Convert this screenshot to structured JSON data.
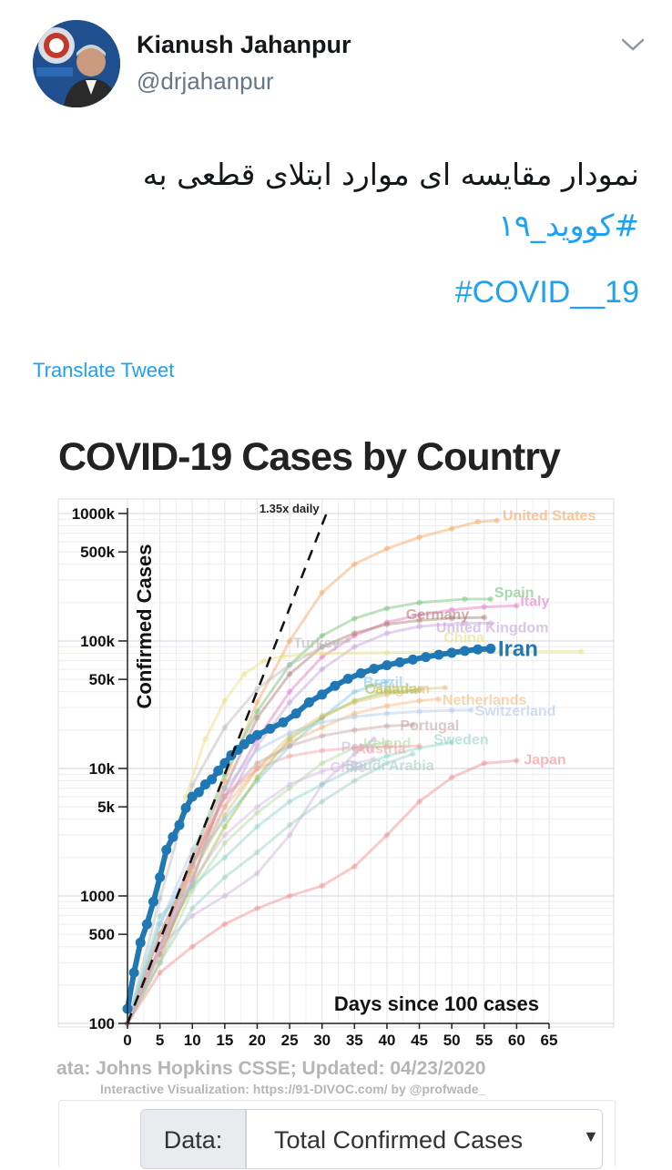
{
  "tweet": {
    "display_name": "Kianush Jahanpur",
    "handle": "@drjahanpur",
    "text_line1": "نمودار مقایسه ای موارد ابتلای قطعی به",
    "hashtag_fa": "#کووید_۱۹",
    "hashtag_en": "#COVID__19",
    "translate_label": "Translate Tweet",
    "menu_icon": "chevron-down-icon",
    "colors": {
      "link": "#1da1f2",
      "text": "#14171a",
      "secondary": "#657786"
    }
  },
  "chart_title": "COVID-19 Cases by Country",
  "chart_data": {
    "type": "line",
    "title": "COVID-19 Cases by Country",
    "xlabel": "Days since 100 cases",
    "ylabel": "Confirmed Cases",
    "xlim": [
      0,
      65
    ],
    "ylim": [
      100,
      1300000
    ],
    "yscale": "log",
    "x_ticks": [
      "0",
      "5",
      "10",
      "15",
      "20",
      "25",
      "30",
      "35",
      "40",
      "45",
      "50",
      "55",
      "60",
      "65"
    ],
    "y_ticks": [
      {
        "label": "100",
        "value": 100
      },
      {
        "label": "500",
        "value": 500
      },
      {
        "label": "1000",
        "value": 1000
      },
      {
        "label": "5k",
        "value": 5000
      },
      {
        "label": "10k",
        "value": 10000
      },
      {
        "label": "50k",
        "value": 50000
      },
      {
        "label": "100k",
        "value": 100000
      },
      {
        "label": "500k",
        "value": 500000
      },
      {
        "label": "1000k",
        "value": 1000000
      }
    ],
    "grid": true,
    "reference_line": {
      "label": "1.35x daily",
      "growth": 1.35,
      "points": [
        [
          0,
          100
        ],
        [
          31,
          1100000
        ]
      ]
    },
    "highlight": "Iran",
    "series": [
      {
        "name": "Iran",
        "color": "#1f77b4",
        "highlight": true,
        "points": [
          [
            0,
            130
          ],
          [
            1,
            250
          ],
          [
            2,
            430
          ],
          [
            3,
            600
          ],
          [
            4,
            900
          ],
          [
            5,
            1400
          ],
          [
            6,
            2300
          ],
          [
            7,
            2900
          ],
          [
            8,
            3600
          ],
          [
            9,
            4900
          ],
          [
            10,
            6000
          ],
          [
            11,
            6500
          ],
          [
            12,
            7500
          ],
          [
            13,
            8200
          ],
          [
            14,
            9600
          ],
          [
            15,
            11000
          ],
          [
            16,
            12700
          ],
          [
            17,
            14000
          ],
          [
            18,
            15500
          ],
          [
            19,
            17000
          ],
          [
            20,
            18300
          ],
          [
            22,
            20500
          ],
          [
            24,
            23000
          ],
          [
            26,
            27000
          ],
          [
            28,
            33000
          ],
          [
            30,
            38000
          ],
          [
            32,
            44500
          ],
          [
            34,
            50500
          ],
          [
            36,
            55700
          ],
          [
            38,
            60500
          ],
          [
            40,
            64500
          ],
          [
            42,
            68000
          ],
          [
            44,
            71500
          ],
          [
            46,
            74800
          ],
          [
            48,
            78000
          ],
          [
            50,
            80800
          ],
          [
            52,
            83500
          ],
          [
            54,
            85900
          ],
          [
            56,
            87000
          ]
        ]
      },
      {
        "name": "United States",
        "color": "#f5a35a",
        "points": [
          [
            0,
            100
          ],
          [
            5,
            300
          ],
          [
            10,
            1700
          ],
          [
            15,
            8000
          ],
          [
            20,
            33000
          ],
          [
            25,
            100000
          ],
          [
            30,
            240000
          ],
          [
            35,
            400000
          ],
          [
            40,
            530000
          ],
          [
            45,
            650000
          ],
          [
            50,
            760000
          ],
          [
            54,
            860000
          ],
          [
            57,
            880000
          ]
        ]
      },
      {
        "name": "Spain",
        "color": "#6fbf73",
        "points": [
          [
            0,
            100
          ],
          [
            5,
            400
          ],
          [
            10,
            2000
          ],
          [
            15,
            9000
          ],
          [
            20,
            28000
          ],
          [
            25,
            65000
          ],
          [
            30,
            110000
          ],
          [
            35,
            150000
          ],
          [
            40,
            180000
          ],
          [
            45,
            200000
          ],
          [
            52,
            213000
          ],
          [
            56,
            213000
          ]
        ]
      },
      {
        "name": "Italy",
        "color": "#e377c2",
        "points": [
          [
            0,
            100
          ],
          [
            5,
            400
          ],
          [
            10,
            1700
          ],
          [
            15,
            6000
          ],
          [
            20,
            17000
          ],
          [
            25,
            40000
          ],
          [
            30,
            75000
          ],
          [
            35,
            110000
          ],
          [
            40,
            140000
          ],
          [
            45,
            160000
          ],
          [
            50,
            175000
          ],
          [
            55,
            185000
          ],
          [
            60,
            189000
          ]
        ]
      },
      {
        "name": "Germany",
        "color": "#ad7a6e",
        "points": [
          [
            0,
            100
          ],
          [
            5,
            350
          ],
          [
            10,
            1300
          ],
          [
            15,
            7000
          ],
          [
            20,
            25000
          ],
          [
            25,
            55000
          ],
          [
            30,
            90000
          ],
          [
            35,
            115000
          ],
          [
            40,
            135000
          ],
          [
            45,
            145000
          ],
          [
            50,
            151000
          ],
          [
            55,
            153000
          ]
        ]
      },
      {
        "name": "United Kingdom",
        "color": "#c5a0d8",
        "points": [
          [
            0,
            100
          ],
          [
            5,
            400
          ],
          [
            10,
            1400
          ],
          [
            15,
            5000
          ],
          [
            20,
            15000
          ],
          [
            25,
            33000
          ],
          [
            30,
            60000
          ],
          [
            35,
            90000
          ],
          [
            40,
            115000
          ],
          [
            45,
            130000
          ],
          [
            52,
            138000
          ],
          [
            56,
            138000
          ]
        ]
      },
      {
        "name": "China",
        "color": "#e5e07a",
        "points": [
          [
            0,
            130
          ],
          [
            3,
            600
          ],
          [
            6,
            2000
          ],
          [
            9,
            6000
          ],
          [
            12,
            17000
          ],
          [
            15,
            34000
          ],
          [
            18,
            55000
          ],
          [
            21,
            70000
          ],
          [
            24,
            76000
          ],
          [
            30,
            80000
          ],
          [
            40,
            81000
          ],
          [
            50,
            82000
          ],
          [
            60,
            82500
          ],
          [
            70,
            82800
          ]
        ]
      },
      {
        "name": "Turkey",
        "color": "#b8b8b8",
        "points": [
          [
            0,
            100
          ],
          [
            5,
            950
          ],
          [
            10,
            7400
          ],
          [
            15,
            21000
          ],
          [
            20,
            42000
          ],
          [
            25,
            65000
          ],
          [
            30,
            90000
          ],
          [
            34,
            101000
          ]
        ]
      },
      {
        "name": "Brazil",
        "color": "#7fc8e8",
        "points": [
          [
            0,
            100
          ],
          [
            5,
            600
          ],
          [
            10,
            1800
          ],
          [
            15,
            4000
          ],
          [
            20,
            8000
          ],
          [
            25,
            15000
          ],
          [
            30,
            25000
          ],
          [
            35,
            40000
          ],
          [
            40,
            48000
          ]
        ]
      },
      {
        "name": "Canada",
        "color": "#9bbf3a",
        "points": [
          [
            0,
            100
          ],
          [
            5,
            400
          ],
          [
            10,
            1200
          ],
          [
            15,
            3500
          ],
          [
            20,
            8500
          ],
          [
            25,
            17000
          ],
          [
            30,
            25000
          ],
          [
            35,
            34000
          ],
          [
            40,
            40000
          ],
          [
            45,
            41000
          ]
        ]
      },
      {
        "name": "Belgium",
        "color": "#d8c27a",
        "points": [
          [
            0,
            100
          ],
          [
            5,
            500
          ],
          [
            10,
            1500
          ],
          [
            15,
            4300
          ],
          [
            20,
            10000
          ],
          [
            25,
            18000
          ],
          [
            30,
            26000
          ],
          [
            35,
            33000
          ],
          [
            40,
            38000
          ],
          [
            45,
            42000
          ],
          [
            49,
            43000
          ]
        ]
      },
      {
        "name": "Netherlands",
        "color": "#f7b57a",
        "points": [
          [
            0,
            100
          ],
          [
            5,
            500
          ],
          [
            10,
            1700
          ],
          [
            15,
            5000
          ],
          [
            20,
            10000
          ],
          [
            25,
            16000
          ],
          [
            30,
            21000
          ],
          [
            35,
            27000
          ],
          [
            40,
            31000
          ],
          [
            45,
            34000
          ],
          [
            48,
            35000
          ]
        ]
      },
      {
        "name": "Switzerland",
        "color": "#aec7e8",
        "points": [
          [
            0,
            100
          ],
          [
            5,
            600
          ],
          [
            10,
            2300
          ],
          [
            15,
            7000
          ],
          [
            20,
            14000
          ],
          [
            25,
            19000
          ],
          [
            30,
            23000
          ],
          [
            35,
            25500
          ],
          [
            40,
            27000
          ],
          [
            45,
            28000
          ],
          [
            50,
            28500
          ],
          [
            53,
            28700
          ]
        ]
      },
      {
        "name": "Portugal",
        "color": "#c6a2a2",
        "points": [
          [
            0,
            100
          ],
          [
            5,
            500
          ],
          [
            10,
            1800
          ],
          [
            15,
            6000
          ],
          [
            20,
            11000
          ],
          [
            25,
            15000
          ],
          [
            30,
            18000
          ],
          [
            35,
            20000
          ],
          [
            40,
            21500
          ],
          [
            44,
            22000
          ]
        ]
      },
      {
        "name": "Peru",
        "color": "#c9b3d6",
        "points": [
          [
            0,
            100
          ],
          [
            5,
            400
          ],
          [
            10,
            700
          ],
          [
            15,
            1000
          ],
          [
            20,
            1500
          ],
          [
            25,
            3000
          ],
          [
            30,
            7500
          ],
          [
            35,
            13000
          ],
          [
            38,
            17000
          ]
        ]
      },
      {
        "name": "Ireland",
        "color": "#b0d9a4",
        "points": [
          [
            0,
            100
          ],
          [
            5,
            300
          ],
          [
            10,
            1100
          ],
          [
            15,
            2600
          ],
          [
            20,
            4500
          ],
          [
            25,
            7000
          ],
          [
            30,
            11000
          ],
          [
            35,
            14500
          ],
          [
            40,
            16000
          ]
        ]
      },
      {
        "name": "Sweden",
        "color": "#8fd3c7",
        "points": [
          [
            0,
            100
          ],
          [
            5,
            700
          ],
          [
            10,
            1200
          ],
          [
            15,
            2000
          ],
          [
            20,
            3500
          ],
          [
            25,
            5500
          ],
          [
            30,
            7500
          ],
          [
            35,
            10000
          ],
          [
            40,
            12500
          ],
          [
            45,
            14500
          ],
          [
            50,
            16000
          ]
        ]
      },
      {
        "name": "Austria",
        "color": "#f2a0a0",
        "points": [
          [
            0,
            100
          ],
          [
            5,
            400
          ],
          [
            10,
            2000
          ],
          [
            15,
            6000
          ],
          [
            20,
            10000
          ],
          [
            25,
            12500
          ],
          [
            30,
            13800
          ],
          [
            35,
            14500
          ],
          [
            40,
            14800
          ],
          [
            45,
            15000
          ]
        ]
      },
      {
        "name": "Saudi Arabia",
        "color": "#9ccfc0",
        "points": [
          [
            0,
            100
          ],
          [
            5,
            300
          ],
          [
            10,
            800
          ],
          [
            15,
            1400
          ],
          [
            20,
            2200
          ],
          [
            25,
            3600
          ],
          [
            30,
            5500
          ],
          [
            35,
            8000
          ],
          [
            40,
            11000
          ],
          [
            44,
            13000
          ]
        ]
      },
      {
        "name": "Chile",
        "color": "#d4b8e0",
        "points": [
          [
            0,
            100
          ],
          [
            5,
            400
          ],
          [
            10,
            1300
          ],
          [
            15,
            3000
          ],
          [
            20,
            5000
          ],
          [
            25,
            7500
          ],
          [
            30,
            9500
          ],
          [
            35,
            11000
          ],
          [
            38,
            11800
          ]
        ]
      },
      {
        "name": "Japan",
        "color": "#ef8a8a",
        "points": [
          [
            0,
            100
          ],
          [
            5,
            250
          ],
          [
            10,
            400
          ],
          [
            15,
            600
          ],
          [
            20,
            800
          ],
          [
            25,
            1000
          ],
          [
            30,
            1200
          ],
          [
            35,
            1700
          ],
          [
            40,
            3000
          ],
          [
            45,
            5500
          ],
          [
            50,
            8500
          ],
          [
            55,
            11000
          ],
          [
            60,
            11500
          ]
        ]
      }
    ]
  },
  "source_line": "ata: Johns Hopkins CSSE; Updated: 04/23/2020",
  "viz_credit": "Interactive Visualization: https://91-DIVOC.com/ by @profwade_",
  "controls": {
    "data_label": "Data:",
    "data_selected": "Total Confirmed Cases",
    "dropdown_icon": "triangle-down-icon"
  }
}
